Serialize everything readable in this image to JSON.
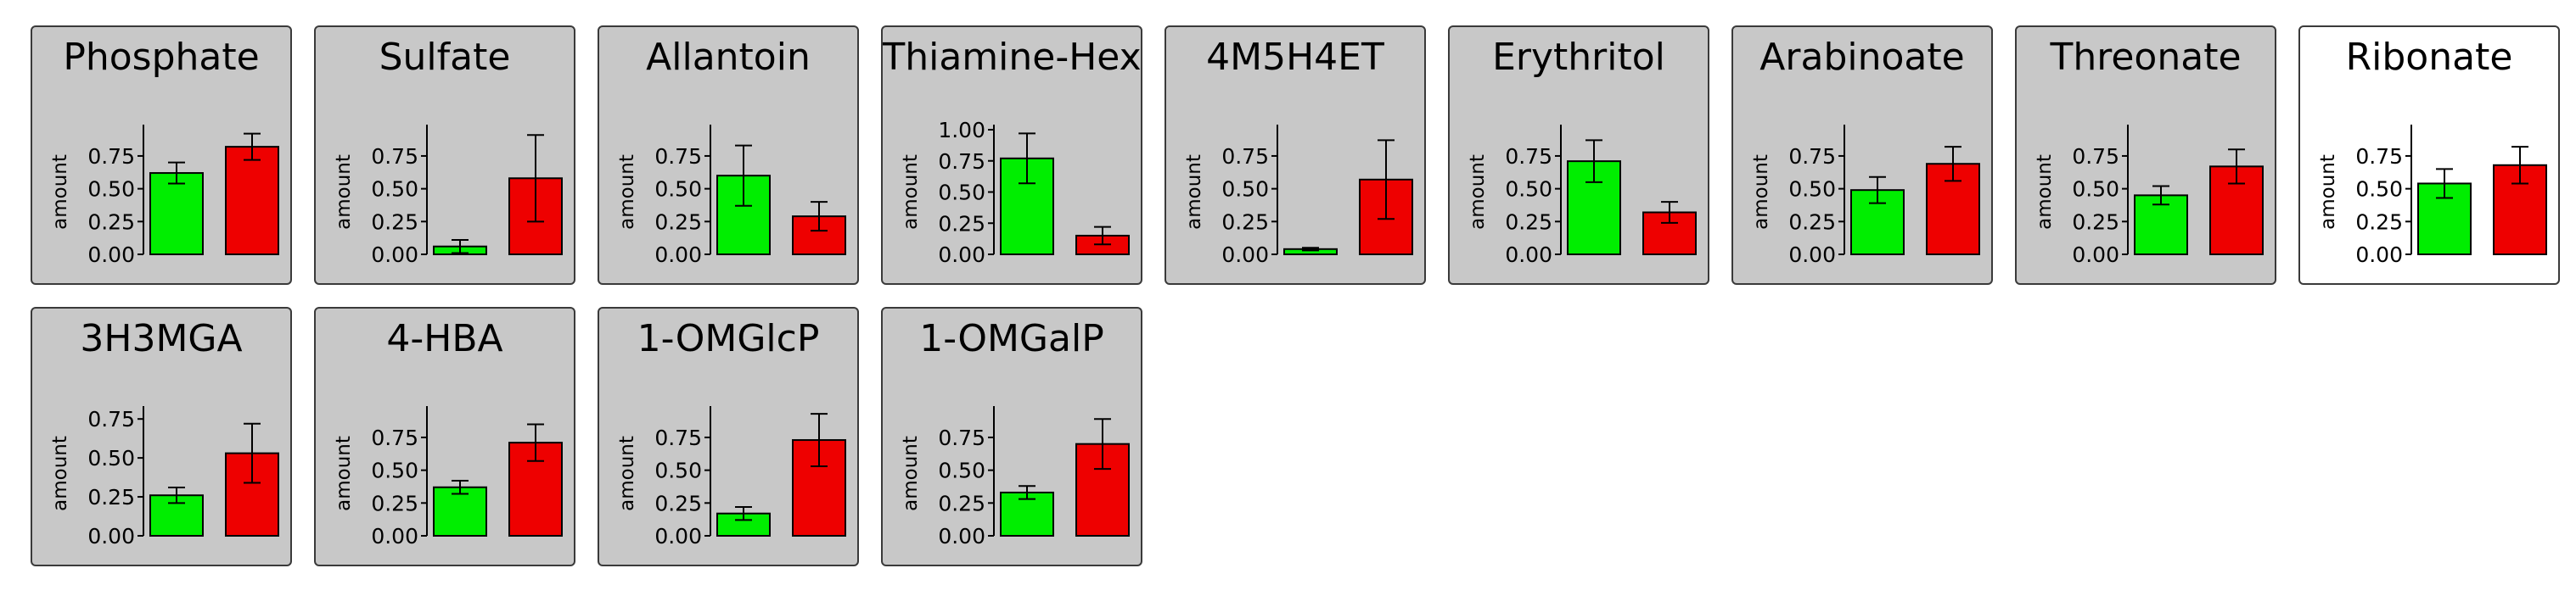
{
  "colors": {
    "green": "#00ee00",
    "red": "#ee0000",
    "panel_bg": "#c8c8c8",
    "panel_bg_selected": "#ffffff"
  },
  "chart_data": [
    {
      "type": "bar",
      "title": "Phosphate",
      "ylabel": "amount",
      "ylim": [
        0,
        0.95
      ],
      "ticks": [
        "0.00",
        "0.25",
        "0.50",
        "0.75"
      ],
      "tick_values": [
        0,
        0.25,
        0.5,
        0.75
      ],
      "values": [
        0.62,
        0.82
      ],
      "errors": [
        0.08,
        0.1
      ],
      "selected": false
    },
    {
      "type": "bar",
      "title": "Sulfate",
      "ylabel": "amount",
      "ylim": [
        0,
        0.95
      ],
      "ticks": [
        "0.00",
        "0.25",
        "0.50",
        "0.75"
      ],
      "tick_values": [
        0,
        0.25,
        0.5,
        0.75
      ],
      "values": [
        0.06,
        0.58
      ],
      "errors": [
        0.05,
        0.33
      ],
      "selected": false
    },
    {
      "type": "bar",
      "title": "Allantoin",
      "ylabel": "amount",
      "ylim": [
        0,
        0.95
      ],
      "ticks": [
        "0.00",
        "0.25",
        "0.50",
        "0.75"
      ],
      "tick_values": [
        0,
        0.25,
        0.5,
        0.75
      ],
      "values": [
        0.6,
        0.29
      ],
      "errors": [
        0.23,
        0.11
      ],
      "selected": false
    },
    {
      "type": "bar",
      "title": "Thiamine-Hex",
      "ylabel": "amount",
      "ylim": [
        0,
        1.0
      ],
      "ticks": [
        "0.00",
        "0.25",
        "0.50",
        "0.75",
        "1.00"
      ],
      "tick_values": [
        0,
        0.25,
        0.5,
        0.75,
        1.0
      ],
      "values": [
        0.77,
        0.15
      ],
      "errors": [
        0.2,
        0.07
      ],
      "selected": false
    },
    {
      "type": "bar",
      "title": "4M5H4ET",
      "ylabel": "amount",
      "ylim": [
        0,
        0.95
      ],
      "ticks": [
        "0.00",
        "0.25",
        "0.50",
        "0.75"
      ],
      "tick_values": [
        0,
        0.25,
        0.5,
        0.75
      ],
      "values": [
        0.04,
        0.57
      ],
      "errors": [
        0.01,
        0.3
      ],
      "selected": false
    },
    {
      "type": "bar",
      "title": "Erythritol",
      "ylabel": "amount",
      "ylim": [
        0,
        0.95
      ],
      "ticks": [
        "0.00",
        "0.25",
        "0.50",
        "0.75"
      ],
      "tick_values": [
        0,
        0.25,
        0.5,
        0.75
      ],
      "values": [
        0.71,
        0.32
      ],
      "errors": [
        0.16,
        0.08
      ],
      "selected": false
    },
    {
      "type": "bar",
      "title": "Arabinoate",
      "ylabel": "amount",
      "ylim": [
        0,
        0.95
      ],
      "ticks": [
        "0.00",
        "0.25",
        "0.50",
        "0.75"
      ],
      "tick_values": [
        0,
        0.25,
        0.5,
        0.75
      ],
      "values": [
        0.49,
        0.69
      ],
      "errors": [
        0.1,
        0.13
      ],
      "selected": false
    },
    {
      "type": "bar",
      "title": "Threonate",
      "ylabel": "amount",
      "ylim": [
        0,
        0.95
      ],
      "ticks": [
        "0.00",
        "0.25",
        "0.50",
        "0.75"
      ],
      "tick_values": [
        0,
        0.25,
        0.5,
        0.75
      ],
      "values": [
        0.45,
        0.67
      ],
      "errors": [
        0.07,
        0.13
      ],
      "selected": false
    },
    {
      "type": "bar",
      "title": "Ribonate",
      "ylabel": "amount",
      "ylim": [
        0,
        0.95
      ],
      "ticks": [
        "0.00",
        "0.25",
        "0.50",
        "0.75"
      ],
      "tick_values": [
        0,
        0.25,
        0.5,
        0.75
      ],
      "values": [
        0.54,
        0.68
      ],
      "errors": [
        0.11,
        0.14
      ],
      "selected": true
    },
    {
      "type": "bar",
      "title": "3H3MGA",
      "ylabel": "amount",
      "ylim": [
        0,
        0.8
      ],
      "ticks": [
        "0.00",
        "0.25",
        "0.50",
        "0.75"
      ],
      "tick_values": [
        0,
        0.25,
        0.5,
        0.75
      ],
      "values": [
        0.26,
        0.53
      ],
      "errors": [
        0.05,
        0.19
      ],
      "selected": false
    },
    {
      "type": "bar",
      "title": "4-HBA",
      "ylabel": "amount",
      "ylim": [
        0,
        0.95
      ],
      "ticks": [
        "0.00",
        "0.25",
        "0.50",
        "0.75"
      ],
      "tick_values": [
        0,
        0.25,
        0.5,
        0.75
      ],
      "values": [
        0.37,
        0.71
      ],
      "errors": [
        0.05,
        0.14
      ],
      "selected": false
    },
    {
      "type": "bar",
      "title": "1-OMGlcP",
      "ylabel": "amount",
      "ylim": [
        0,
        0.95
      ],
      "ticks": [
        "0.00",
        "0.25",
        "0.50",
        "0.75"
      ],
      "tick_values": [
        0,
        0.25,
        0.5,
        0.75
      ],
      "values": [
        0.17,
        0.73
      ],
      "errors": [
        0.05,
        0.2
      ],
      "selected": false
    },
    {
      "type": "bar",
      "title": "1-OMGalP",
      "ylabel": "amount",
      "ylim": [
        0,
        0.95
      ],
      "ticks": [
        "0.00",
        "0.25",
        "0.50",
        "0.75"
      ],
      "tick_values": [
        0,
        0.25,
        0.5,
        0.75
      ],
      "values": [
        0.33,
        0.7
      ],
      "errors": [
        0.05,
        0.19
      ],
      "selected": false
    }
  ]
}
